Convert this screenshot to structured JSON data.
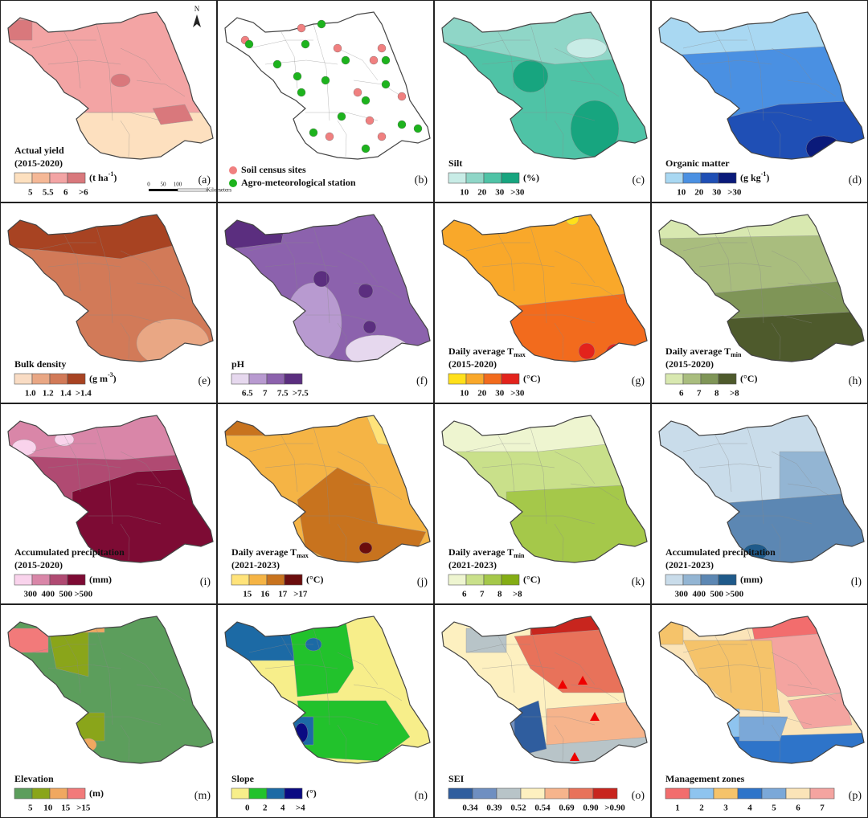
{
  "north": "N",
  "scale_bar": {
    "ticks": [
      "0",
      "50",
      "100"
    ],
    "unit": "Kilometers"
  },
  "panels": [
    {
      "label": "(a)",
      "title": "Actual yield",
      "period": "(2015-2020)",
      "unit": "(t ha",
      "unit_sup": "-1",
      "unit_end": ")",
      "colors": [
        "#fde0bf",
        "#f5b896",
        "#f3a4a4",
        "#d9787c"
      ],
      "ticks": [
        "5",
        "5.5",
        "6",
        ">6"
      ]
    },
    {
      "label": "(b)",
      "legend": [
        {
          "name": "Soil census sites",
          "color": "#f08080"
        },
        {
          "name": "Agro-meteorological station",
          "color": "#1db31d"
        }
      ]
    },
    {
      "label": "(c)",
      "title": "Silt",
      "unit": "(%)",
      "colors": [
        "#c8ece6",
        "#8fd6c7",
        "#4fc3a6",
        "#17a57f"
      ],
      "ticks": [
        "10",
        "20",
        "30",
        ">30"
      ]
    },
    {
      "label": "(d)",
      "title": "Organic matter",
      "unit": "(g kg",
      "unit_sup": "-1",
      "unit_end": ")",
      "colors": [
        "#a9d8f2",
        "#4a90e2",
        "#1f4fb5",
        "#0a1a7a"
      ],
      "ticks": [
        "10",
        "20",
        "30",
        ">30"
      ]
    },
    {
      "label": "(e)",
      "title": "Bulk density",
      "unit": "(g m",
      "unit_sup": "-3",
      "unit_end": ")",
      "colors": [
        "#f9dcc4",
        "#e9a784",
        "#d27a58",
        "#a84322"
      ],
      "ticks": [
        "1.0",
        "1.2",
        "1.4",
        ">1.4"
      ]
    },
    {
      "label": "(f)",
      "title": "pH",
      "colors": [
        "#e6d8ee",
        "#b89ad0",
        "#8c62ad",
        "#5b2e7f"
      ],
      "ticks": [
        "6.5",
        "7",
        "7.5",
        ">7.5"
      ]
    },
    {
      "label": "(g)",
      "title": "Daily average T",
      "title_sub": "max",
      "period": "(2015-2020)",
      "unit": "(°C)",
      "colors": [
        "#ffe01a",
        "#f9a82a",
        "#f26b1d",
        "#e3231c"
      ],
      "ticks": [
        "10",
        "20",
        "30",
        ">30"
      ]
    },
    {
      "label": "(h)",
      "title": "Daily average T",
      "title_sub": "min",
      "period": "(2015-2020)",
      "unit": "(°C)",
      "colors": [
        "#d8e8b0",
        "#a9bd7e",
        "#7f9557",
        "#4e5a2c"
      ],
      "ticks": [
        "6",
        "7",
        "8",
        ">8"
      ]
    },
    {
      "label": "(i)",
      "title": "Accumulated precipitation",
      "period": "(2015-2020)",
      "unit": "(mm)",
      "colors": [
        "#f9d3ec",
        "#d986a8",
        "#b04a72",
        "#7d0b34"
      ],
      "ticks": [
        "300",
        "400",
        "500",
        ">500"
      ]
    },
    {
      "label": "(j)",
      "title": "Daily average T",
      "title_sub": "max",
      "period": "(2021-2023)",
      "unit": "(°C)",
      "colors": [
        "#ffe37a",
        "#f5b445",
        "#c8731e",
        "#6b0d0d"
      ],
      "ticks": [
        "15",
        "16",
        "17",
        ">17"
      ]
    },
    {
      "label": "(k)",
      "title": "Daily average T",
      "title_sub": "min",
      "period": "(2021-2023)",
      "unit": "(°C)",
      "colors": [
        "#eef5d0",
        "#c9e08a",
        "#a5c84a",
        "#84ad14"
      ],
      "ticks": [
        "6",
        "7",
        "8",
        ">8"
      ]
    },
    {
      "label": "(l)",
      "title": "Accumulated precipitation",
      "period": "(2021-2023)",
      "unit": "(mm)",
      "colors": [
        "#c9dcea",
        "#93b5d3",
        "#5c87b3",
        "#1f5a8a"
      ],
      "ticks": [
        "300",
        "400",
        "500",
        ">500"
      ]
    },
    {
      "label": "(m)",
      "title": "Elevation",
      "unit": "(m)",
      "colors": [
        "#5c9e5c",
        "#8aa51a",
        "#f0a860",
        "#f27a7a"
      ],
      "ticks": [
        "5",
        "10",
        "15",
        ">15"
      ]
    },
    {
      "label": "(n)",
      "title": "Slope",
      "unit": "(°)",
      "colors": [
        "#f7ee8a",
        "#22c22c",
        "#1c6aa5",
        "#0a0a82"
      ],
      "ticks": [
        "0",
        "2",
        "4",
        ">4"
      ]
    },
    {
      "label": "(o)",
      "title": "SEI",
      "colors": [
        "#2f5d9e",
        "#6f8fc1",
        "#b8c4c8",
        "#fdf0c0",
        "#f6b48c",
        "#e8725a",
        "#c8251e"
      ],
      "ticks": [
        "0.34",
        "0.39",
        "0.52",
        "0.54",
        "0.69",
        "0.90",
        ">0.90"
      ]
    },
    {
      "label": "(p)",
      "title": "Management zones",
      "centered": true,
      "colors": [
        "#f26d6d",
        "#8ec4ef",
        "#f5c36a",
        "#2e74c9",
        "#7ba8d8",
        "#fbe4b8",
        "#f4a4a0"
      ],
      "ticks": [
        "1",
        "2",
        "3",
        "4",
        "5",
        "6",
        "7"
      ]
    }
  ]
}
